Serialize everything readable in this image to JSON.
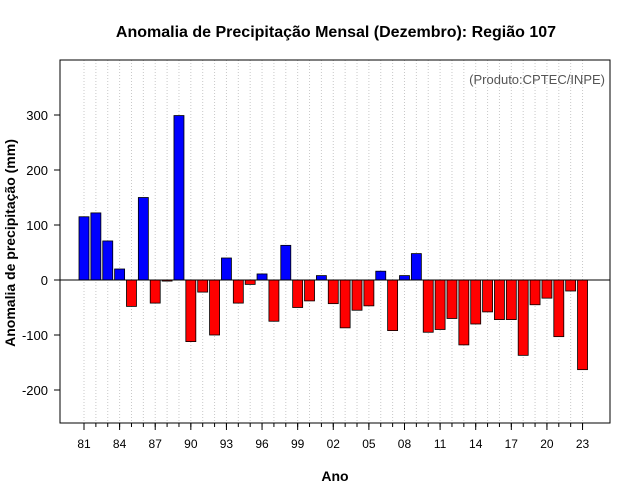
{
  "chart_data": {
    "type": "bar",
    "title": "Anomalia de Precipitação Mensal (Dezembro): Região 107",
    "xlabel": "Ano",
    "ylabel": "Anomalia de precipitação (mm)",
    "credit": "(Produto:CPTEC/INPE)",
    "ylim": [
      -260,
      400
    ],
    "yticks": [
      -200,
      -100,
      0,
      100,
      200,
      300
    ],
    "ytick_labels": [
      "-200",
      "-100",
      "0",
      "100",
      "200",
      "300"
    ],
    "grid": "vertical dotted",
    "years": [
      1981,
      1982,
      1983,
      1984,
      1985,
      1986,
      1987,
      1988,
      1989,
      1990,
      1991,
      1992,
      1993,
      1994,
      1995,
      1996,
      1997,
      1998,
      1999,
      2000,
      2001,
      2002,
      2003,
      2004,
      2005,
      2006,
      2007,
      2008,
      2009,
      2010,
      2011,
      2012,
      2013,
      2014,
      2015,
      2016,
      2017,
      2018,
      2019,
      2020,
      2021,
      2022,
      2023
    ],
    "values": [
      115,
      122,
      71,
      20,
      -48,
      150,
      -42,
      -2,
      299,
      -112,
      -22,
      -100,
      40,
      -42,
      -8,
      11,
      -75,
      63,
      -50,
      -38,
      8,
      -43,
      -87,
      -55,
      -47,
      16,
      -92,
      8,
      48,
      -95,
      -90,
      -70,
      -118,
      -80,
      -58,
      -72,
      -72,
      -137,
      -45,
      -33,
      -103,
      -20,
      -163
    ],
    "xtick_labels": [
      "81",
      "84",
      "87",
      "90",
      "93",
      "96",
      "99",
      "02",
      "05",
      "08",
      "11",
      "14",
      "17",
      "20",
      "23"
    ],
    "xtick_years": [
      1981,
      1984,
      1987,
      1990,
      1993,
      1996,
      1999,
      2002,
      2005,
      2008,
      2011,
      2014,
      2017,
      2020,
      2023
    ],
    "positive_color": "#0000ff",
    "negative_color": "#ff0000",
    "zero_line_color": "#000000"
  }
}
